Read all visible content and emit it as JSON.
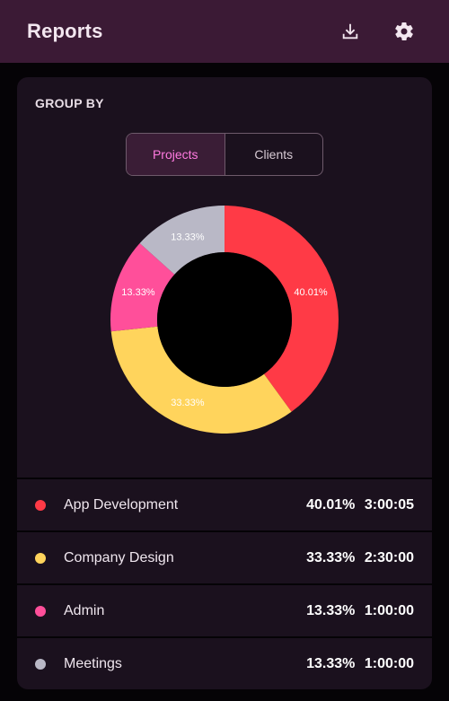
{
  "app_bar": {
    "title": "Reports",
    "download_icon": "download-icon",
    "settings_icon": "gear-icon"
  },
  "card": {
    "group_by_label": "GROUP BY",
    "segments": [
      {
        "label": "Projects",
        "active": true
      },
      {
        "label": "Clients",
        "active": false
      }
    ]
  },
  "chart_data": {
    "type": "pie",
    "donut": true,
    "categories": [
      "App Development",
      "Company Design",
      "Admin",
      "Meetings"
    ],
    "values": [
      40.01,
      33.33,
      13.33,
      13.33
    ],
    "labels": [
      "40.01%",
      "33.33%",
      "13.33%",
      "13.33%"
    ],
    "colors": [
      "#ff3a46",
      "#ffd45c",
      "#ff4f9a",
      "#b9b8c6"
    ],
    "title": ""
  },
  "list": [
    {
      "name": "App Development",
      "percent": "40.01%",
      "time": "3:00:05",
      "color": "#ff3a46"
    },
    {
      "name": "Company Design",
      "percent": "33.33%",
      "time": "2:30:00",
      "color": "#ffd45c"
    },
    {
      "name": "Admin",
      "percent": "13.33%",
      "time": "1:00:00",
      "color": "#ff4f9a"
    },
    {
      "name": "Meetings",
      "percent": "13.33%",
      "time": "1:00:00",
      "color": "#b9b8c6"
    }
  ]
}
